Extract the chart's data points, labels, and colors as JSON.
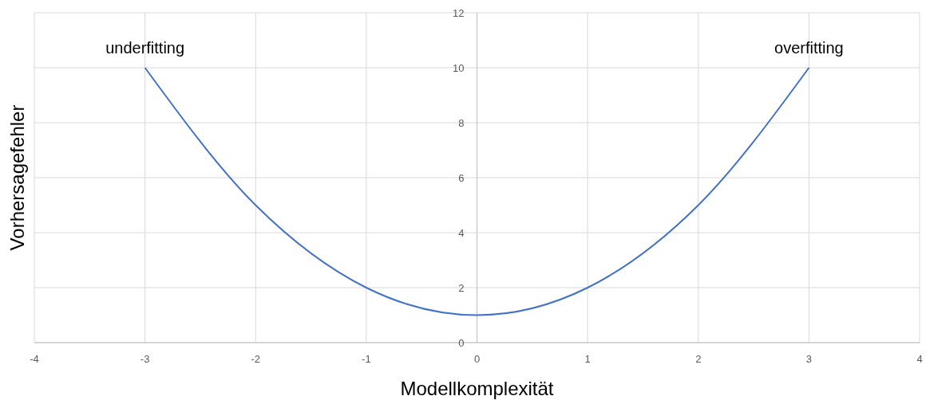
{
  "chart_data": {
    "type": "line",
    "xlabel": "Modellkomplexität",
    "ylabel": "Vorhersagefehler",
    "x": [
      -3,
      -2,
      -1,
      0,
      1,
      2,
      3
    ],
    "series": [
      {
        "color": "#4472c4",
        "values": [
          10,
          5,
          2,
          1,
          2,
          5,
          10
        ]
      }
    ],
    "xlim": [
      -4,
      4
    ],
    "xticks": [
      -4,
      -3,
      -2,
      -1,
      0,
      1,
      2,
      3,
      4
    ],
    "ylim": [
      0,
      12
    ],
    "yticks": [
      0,
      2,
      4,
      6,
      8,
      10,
      12
    ],
    "grid": true,
    "marker": "none",
    "line_style": "solid",
    "annotations": [
      {
        "text": "underfitting",
        "x": -3,
        "y": 10
      },
      {
        "text": "overfitting",
        "x": 3,
        "y": 10
      }
    ]
  }
}
